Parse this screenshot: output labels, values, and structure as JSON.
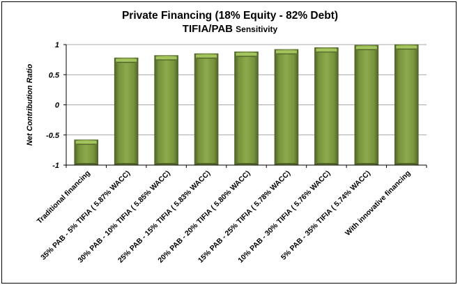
{
  "chart_data": {
    "type": "bar",
    "title": "Private Financing (18% Equity - 82% Debt)",
    "subtitle_main": "TIFIA/PAB ",
    "subtitle_small": "Sensitivity",
    "xlabel": "",
    "ylabel": "Net Contribution Ratio",
    "ylim": [
      -1,
      1
    ],
    "yticks": [
      1,
      0.5,
      0,
      -0.5,
      -1
    ],
    "ytick_labels": [
      "1",
      "0.5",
      "0",
      "-0.5",
      "-1"
    ],
    "grid": true,
    "categories": [
      "Traditional financing",
      "35% PAB - 5% TIFIA ( 5.87% WACC)",
      "30% PAB - 10% TIFIA ( 5.85% WACC)",
      "25% PAB - 15% TIFIA ( 5.83% WACC)",
      "20% PAB - 20% TIFIA ( 5.80% WACC)",
      "15% PAB - 25% TIFIA ( 5.78% WACC)",
      "10% PAB - 30% TIFIA ( 5.76% WACC)",
      "5% PAB - 35% TIFIA ( 5.74% WACC)",
      "With innovative financing"
    ],
    "values": [
      -0.58,
      0.78,
      0.82,
      0.85,
      0.88,
      0.92,
      0.95,
      0.99,
      1.0
    ],
    "bar_color": "#77933C",
    "bar_light": "#A4C45E",
    "bar_dark": "#4F6228"
  }
}
